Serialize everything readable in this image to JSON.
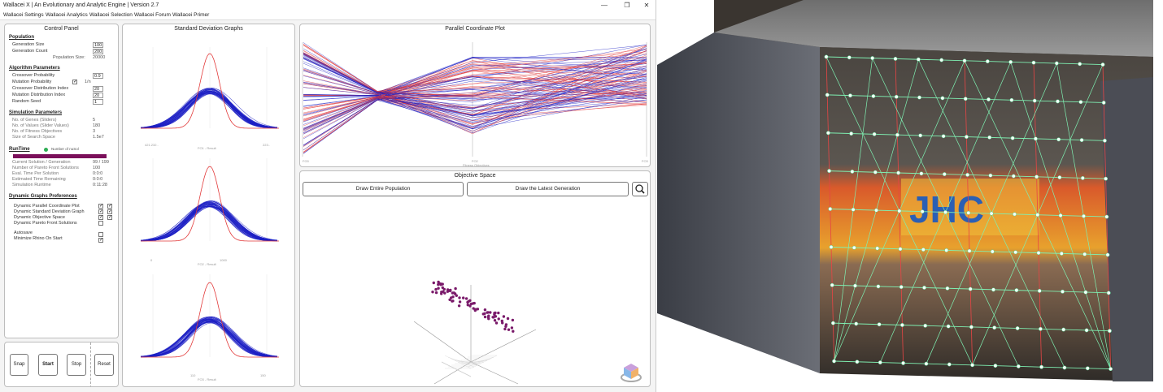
{
  "window": {
    "title": "Wallacei X  |  An Evolutionary and Analytic Engine  |  Version 2.7",
    "controls": [
      "—",
      "❐",
      "✕"
    ]
  },
  "menu": [
    "Wallacei Settings",
    "Wallacei Analytics",
    "Wallacei Selection",
    "Wallacei Forum",
    "Wallacei Primer"
  ],
  "control_panel": {
    "title": "Control Panel",
    "population": {
      "heading": "Population",
      "generation_size_label": "Generation Size",
      "generation_size": "100",
      "generation_count_label": "Generation Count",
      "generation_count": "200",
      "population_size_label": "Population Size:",
      "population_size": "20000"
    },
    "algorithm": {
      "heading": "Algorithm Parameters",
      "crossover_prob_label": "Crossover Probability",
      "crossover_prob": "0.9",
      "mutation_prob_label": "Mutation Probability",
      "mutation_prob": "1/n",
      "crossover_dist_label": "Crossover Distribution Index",
      "crossover_dist": "20",
      "mutation_dist_label": "Mutation Distribution Index",
      "mutation_dist": "20",
      "seed_label": "Random Seed",
      "seed": "1"
    },
    "simulation": {
      "heading": "Simulation Parameters",
      "genes_label": "No. of Genes (Sliders)",
      "genes": "5",
      "values_label": "No. of Values (Slider Values)",
      "values": "180",
      "objectives_label": "No. of Fitness Objectives",
      "objectives": "3",
      "search_label": "Size of Search Space",
      "search": "1.5e7"
    },
    "runtime": {
      "heading": "RunTime",
      "indicator": "Number of nuSol",
      "current_label": "Current Solution / Generation",
      "current": "99 / 199",
      "pareto_label": "Number of Pareto Front Solutions",
      "pareto": "100",
      "eval_label": "Eval. Time Per Solution",
      "eval": "0:0:0",
      "est_label": "Estimated Time Remaining",
      "est": "0:0:0",
      "sim_label": "Simulation Runtime",
      "sim": "0:11:28",
      "progress": 1.0
    },
    "dynamic": {
      "heading": "Dynamic Graphs Preferences",
      "pcp": "Dynamic Parallel Coordinate Plot",
      "sd": "Dynamic Standard Deviation Graph",
      "obj": "Dynamic Objective Space",
      "pareto": "Dynamic Pareto Front Solutions",
      "autosave": "Autosave",
      "minimize": "Minimize Rhino On Start"
    },
    "buttons": {
      "snap": "Snap",
      "start": "Start",
      "stop": "Stop",
      "reset": "Reset"
    }
  },
  "sd_panel": {
    "title": "Standard Deviation Graphs",
    "g1_axis": [
      "421.232..",
      "FO1 - Result",
      "223.."
    ],
    "g2_axis": [
      "0",
      "1000",
      "FO2 - Result"
    ],
    "g3_axis": [
      "110",
      "FO3 - Result",
      "150"
    ]
  },
  "pcp_panel": {
    "title": "Parallel Coordinate Plot",
    "axis_left": "FO0",
    "axis_mid": "FO2",
    "axis_mid_sub": "Fitness Objectives",
    "axis_right": "FO3"
  },
  "obj_panel": {
    "title": "Objective Space",
    "draw_population": "Draw Entire Population",
    "draw_latest": "Draw the Latest Generation"
  },
  "colors": {
    "accent": "#7b0f5a",
    "blue": "#1c20c4",
    "red": "#e23a3a",
    "green": "#2fae55",
    "point": "#7a1a6a"
  },
  "icons": [
    "search-icon",
    "view-cube-icon",
    "status-dot-icon"
  ]
}
